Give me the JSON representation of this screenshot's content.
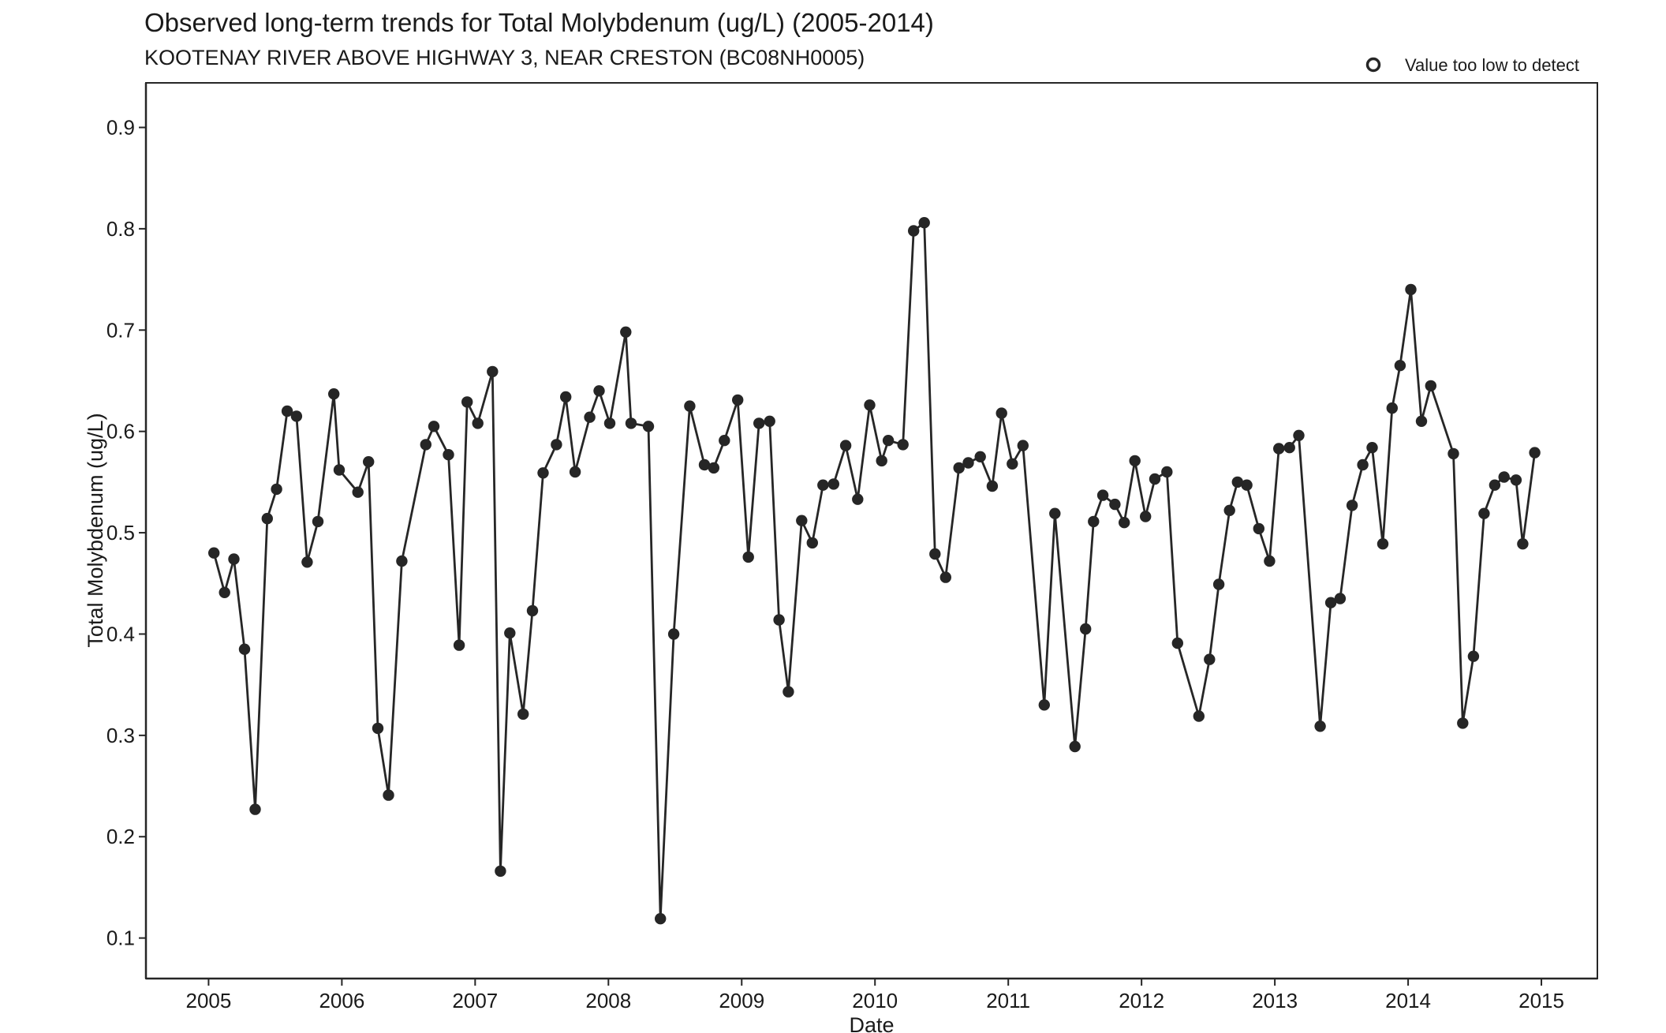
{
  "chart_data": {
    "type": "line",
    "title": "Observed long-term trends for Total Molybdenum (ug/L) (2005-2014)",
    "subtitle": "KOOTENAY RIVER ABOVE HIGHWAY 3, NEAR CRESTON (BC08NH0005)",
    "xlabel": "Date",
    "ylabel": "Total Molybdenum (ug/L)",
    "xlim": [
      2004.53,
      2015.42
    ],
    "ylim": [
      0.06,
      0.944
    ],
    "x_ticks": [
      2005,
      2006,
      2007,
      2008,
      2009,
      2010,
      2011,
      2012,
      2013,
      2014,
      2015
    ],
    "x_tick_labels": [
      "2005",
      "2006",
      "2007",
      "2008",
      "2009",
      "2010",
      "2011",
      "2012",
      "2013",
      "2014",
      "2015"
    ],
    "y_ticks": [
      0.1,
      0.2,
      0.3,
      0.4,
      0.5,
      0.6,
      0.7,
      0.8,
      0.9
    ],
    "y_tick_labels": [
      "0.1",
      "0.2",
      "0.3",
      "0.4",
      "0.5",
      "0.6",
      "0.7",
      "0.8",
      "0.9"
    ],
    "grid": false,
    "legend": {
      "position": "top-right",
      "entries": [
        {
          "label": "Value too low to detect",
          "marker": "open-circle"
        }
      ]
    },
    "series": [
      {
        "color": "#262626",
        "points": [
          [
            2005.04,
            0.48
          ],
          [
            2005.12,
            0.441
          ],
          [
            2005.19,
            0.474
          ],
          [
            2005.27,
            0.385
          ],
          [
            2005.35,
            0.227
          ],
          [
            2005.44,
            0.514
          ],
          [
            2005.51,
            0.543
          ],
          [
            2005.59,
            0.62
          ],
          [
            2005.66,
            0.615
          ],
          [
            2005.74,
            0.471
          ],
          [
            2005.82,
            0.511
          ],
          [
            2005.94,
            0.637
          ],
          [
            2005.98,
            0.562
          ],
          [
            2006.12,
            0.54
          ],
          [
            2006.2,
            0.57
          ],
          [
            2006.27,
            0.307
          ],
          [
            2006.35,
            0.241
          ],
          [
            2006.45,
            0.472
          ],
          [
            2006.63,
            0.587
          ],
          [
            2006.69,
            0.605
          ],
          [
            2006.8,
            0.577
          ],
          [
            2006.88,
            0.389
          ],
          [
            2006.94,
            0.629
          ],
          [
            2007.02,
            0.608
          ],
          [
            2007.13,
            0.659
          ],
          [
            2007.19,
            0.166
          ],
          [
            2007.26,
            0.401
          ],
          [
            2007.36,
            0.321
          ],
          [
            2007.43,
            0.423
          ],
          [
            2007.51,
            0.559
          ],
          [
            2007.61,
            0.587
          ],
          [
            2007.68,
            0.634
          ],
          [
            2007.75,
            0.56
          ],
          [
            2007.86,
            0.614
          ],
          [
            2007.93,
            0.64
          ],
          [
            2008.01,
            0.608
          ],
          [
            2008.13,
            0.698
          ],
          [
            2008.17,
            0.608
          ],
          [
            2008.3,
            0.605
          ],
          [
            2008.39,
            0.119
          ],
          [
            2008.49,
            0.4
          ],
          [
            2008.61,
            0.625
          ],
          [
            2008.72,
            0.567
          ],
          [
            2008.79,
            0.564
          ],
          [
            2008.87,
            0.591
          ],
          [
            2008.97,
            0.631
          ],
          [
            2009.05,
            0.476
          ],
          [
            2009.13,
            0.608
          ],
          [
            2009.21,
            0.61
          ],
          [
            2009.28,
            0.414
          ],
          [
            2009.35,
            0.343
          ],
          [
            2009.45,
            0.512
          ],
          [
            2009.53,
            0.49
          ],
          [
            2009.61,
            0.547
          ],
          [
            2009.69,
            0.548
          ],
          [
            2009.78,
            0.586
          ],
          [
            2009.87,
            0.533
          ],
          [
            2009.96,
            0.626
          ],
          [
            2010.05,
            0.571
          ],
          [
            2010.1,
            0.591
          ],
          [
            2010.21,
            0.587
          ],
          [
            2010.29,
            0.798
          ],
          [
            2010.37,
            0.806
          ],
          [
            2010.45,
            0.479
          ],
          [
            2010.53,
            0.456
          ],
          [
            2010.63,
            0.564
          ],
          [
            2010.7,
            0.569
          ],
          [
            2010.79,
            0.575
          ],
          [
            2010.88,
            0.546
          ],
          [
            2010.95,
            0.618
          ],
          [
            2011.03,
            0.568
          ],
          [
            2011.11,
            0.586
          ],
          [
            2011.27,
            0.33
          ],
          [
            2011.35,
            0.519
          ],
          [
            2011.5,
            0.289
          ],
          [
            2011.58,
            0.405
          ],
          [
            2011.64,
            0.511
          ],
          [
            2011.71,
            0.537
          ],
          [
            2011.8,
            0.528
          ],
          [
            2011.87,
            0.51
          ],
          [
            2011.95,
            0.571
          ],
          [
            2012.03,
            0.516
          ],
          [
            2012.1,
            0.553
          ],
          [
            2012.19,
            0.56
          ],
          [
            2012.27,
            0.391
          ],
          [
            2012.43,
            0.319
          ],
          [
            2012.51,
            0.375
          ],
          [
            2012.58,
            0.449
          ],
          [
            2012.66,
            0.522
          ],
          [
            2012.72,
            0.55
          ],
          [
            2012.79,
            0.547
          ],
          [
            2012.88,
            0.504
          ],
          [
            2012.96,
            0.472
          ],
          [
            2013.03,
            0.583
          ],
          [
            2013.11,
            0.584
          ],
          [
            2013.18,
            0.596
          ],
          [
            2013.34,
            0.309
          ],
          [
            2013.42,
            0.431
          ],
          [
            2013.49,
            0.435
          ],
          [
            2013.58,
            0.527
          ],
          [
            2013.66,
            0.567
          ],
          [
            2013.73,
            0.584
          ],
          [
            2013.81,
            0.489
          ],
          [
            2013.88,
            0.623
          ],
          [
            2013.94,
            0.665
          ],
          [
            2014.02,
            0.74
          ],
          [
            2014.1,
            0.61
          ],
          [
            2014.17,
            0.645
          ],
          [
            2014.34,
            0.578
          ],
          [
            2014.41,
            0.312
          ],
          [
            2014.49,
            0.378
          ],
          [
            2014.57,
            0.519
          ],
          [
            2014.65,
            0.547
          ],
          [
            2014.72,
            0.555
          ],
          [
            2014.81,
            0.552
          ],
          [
            2014.86,
            0.489
          ],
          [
            2014.95,
            0.579
          ]
        ]
      }
    ]
  }
}
